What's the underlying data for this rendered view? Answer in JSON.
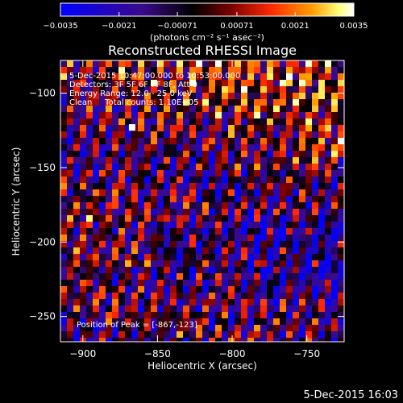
{
  "chart_data": {
    "type": "heatmap",
    "title": "Reconstructed RHESSI Image",
    "xlabel": "Heliocentric X (arcsec)",
    "ylabel": "Heliocentric Y (arcsec)",
    "xlim": [
      -915,
      -725
    ],
    "ylim": [
      -267,
      -78
    ],
    "x_ticks": [
      -900,
      -850,
      -800,
      -750
    ],
    "y_ticks": [
      -100,
      -150,
      -200,
      -250
    ],
    "colorbar": {
      "range": [
        -0.0035,
        0.0035
      ],
      "ticks": [
        -0.0035,
        -0.0021,
        -0.00071,
        0.00071,
        0.0021,
        0.0035
      ],
      "tick_labels": [
        "−0.0035",
        "−0.0021",
        "−0.00071",
        "0.00071",
        "0.0021",
        "0.0035"
      ],
      "unit_label": "(photons cm⁻² s⁻¹ asec⁻²)"
    },
    "annotations": [
      "5-Dec-2015 10:47:00.000 to 10:53:00.000",
      "Detectors: 3F 5F 6F 7F 8F, Att 0",
      "Energy Range: 12.0 - 25.0 keV",
      "Clean     Total counts: 1.10E+05"
    ],
    "peak_label": "Position of Peak = [-867,-123]",
    "peak": [
      -867,
      -123
    ],
    "footer_timestamp": "5-Dec-2015 16:03",
    "grid": false,
    "colormap": [
      "#0000ff",
      "#2a0a6a",
      "#000000",
      "#8a0000",
      "#ff2000",
      "#ff9a00",
      "#ffff60",
      "#ffffff"
    ]
  }
}
